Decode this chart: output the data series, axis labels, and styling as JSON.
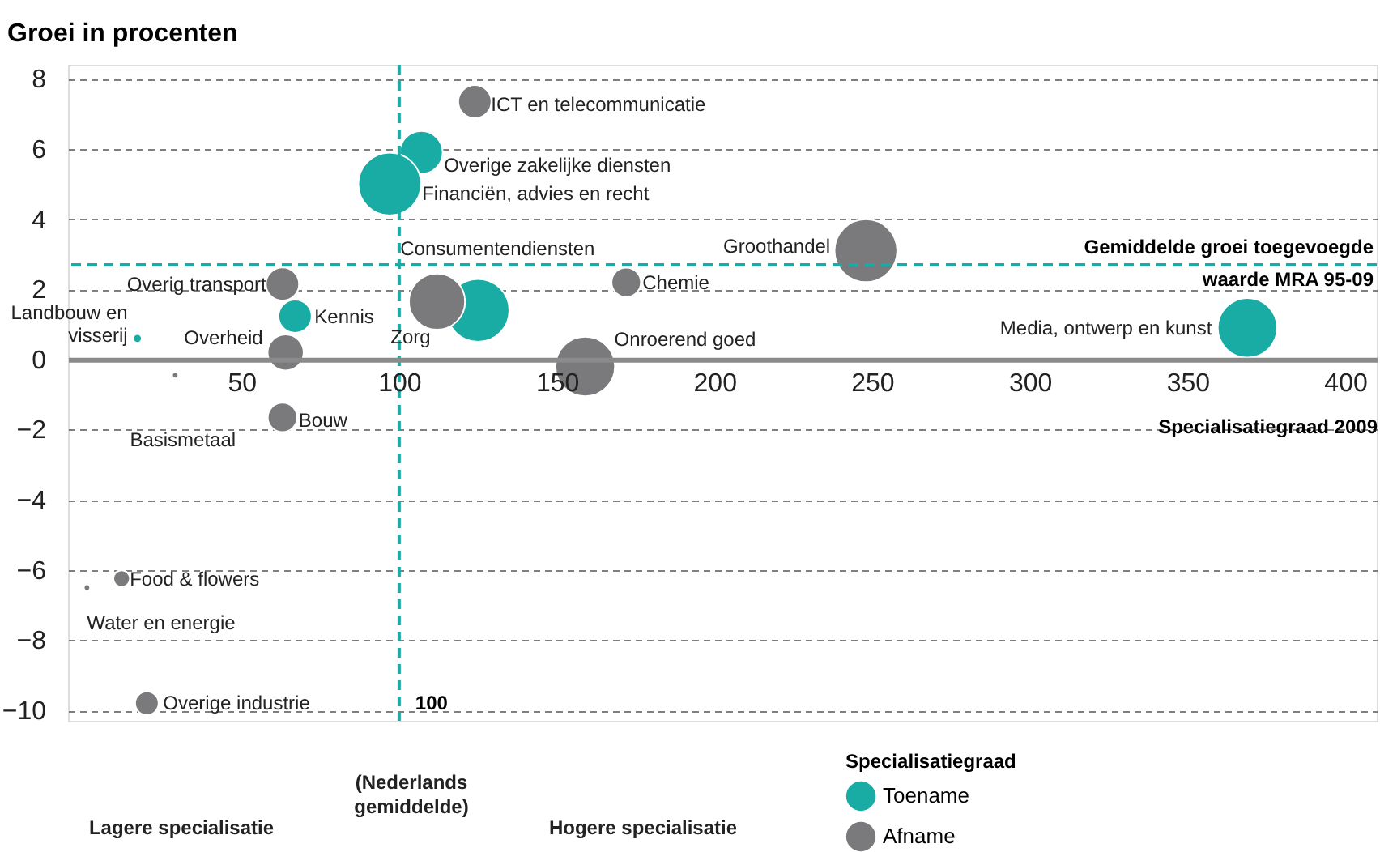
{
  "chart_data": {
    "type": "bubble",
    "ylabel": "Groei  in procenten",
    "xlabel": "Specialisatiegraad 2009",
    "legend_title": "Specialisatiegraad",
    "series": [
      {
        "name": "Toename",
        "color": "#19aca4",
        "x": [
          107,
          97,
          67,
          125,
          369,
          17
        ],
        "values": [
          5.9,
          5.0,
          1.23,
          1.4,
          0.9,
          0.6
        ],
        "sizes": [
          0.47,
          1,
          0.28,
          1,
          0.9,
          0.02
        ]
      },
      {
        "name": "Afname",
        "color": "#7a7a7c",
        "x": [
          124,
          248,
          63,
          112,
          172,
          64,
          159,
          29,
          63,
          12,
          1,
          20
        ],
        "values": [
          7.35,
          3.1,
          2.15,
          1.65,
          2.2,
          0.2,
          -0.2,
          -0.45,
          -1.65,
          -6.25,
          -6.5,
          -9.8
        ],
        "sizes": [
          0.28,
          1,
          0.28,
          0.8,
          0.22,
          0.33,
          0.9,
          0.01,
          0.22,
          0.07,
          0.01,
          0.14
        ]
      }
    ],
    "annotations": [
      {
        "text": "ICT en telecommunicatie",
        "x": 124,
        "y": 7.35
      },
      {
        "text": "Overige zakelijke diensten",
        "x": 107,
        "y": 5.9
      },
      {
        "text": "Financiën, advies en recht",
        "x": 97,
        "y": 5.0
      },
      {
        "text": "Groothandel",
        "x": 248,
        "y": 3.1
      },
      {
        "text": "Overig transport",
        "x": 63,
        "y": 2.15
      },
      {
        "text": "Kennis",
        "x": 67,
        "y": 1.23
      },
      {
        "text": "Consumentendiensten",
        "x": 125,
        "y": 1.4
      },
      {
        "text": "Zorg",
        "x": 112,
        "y": 1.65
      },
      {
        "text": "Chemie",
        "x": 172,
        "y": 2.2
      },
      {
        "text": "Media, ontwerp en kunst",
        "x": 369,
        "y": 0.9
      },
      {
        "text": "Landbouw en visserij",
        "x": 17,
        "y": 0.6
      },
      {
        "text": "Overheid",
        "x": 64,
        "y": 0.2
      },
      {
        "text": "Onroerend goed",
        "x": 159,
        "y": -0.2
      },
      {
        "text": "Basismetaal",
        "x": 29,
        "y": -0.45
      },
      {
        "text": "Bouw",
        "x": 63,
        "y": -1.65
      },
      {
        "text": "Food & flowers",
        "x": 12,
        "y": -6.25
      },
      {
        "text": "Water en energie",
        "x": 1,
        "y": -6.5
      },
      {
        "text": "Overige industrie",
        "x": 20,
        "y": -9.8
      },
      "(Nederlands gemiddelde)",
      "Lagere specialisatie",
      "Hogere specialisatie"
    ],
    "ref_lines": [
      {
        "axis": "x",
        "value": 100,
        "label": "100",
        "color": "#19aca4",
        "line_style": "dashed"
      },
      {
        "axis": "y",
        "value": 2.7,
        "label": "Gemiddelde groei toegevoegde waarde MRA 95-09",
        "color": "#19aca4",
        "line_style": "dashed"
      }
    ],
    "xlim": [
      -5,
      410
    ],
    "ylim": [
      -10.3,
      8.4
    ],
    "xticks": [
      50,
      100,
      150,
      200,
      250,
      300,
      350,
      400
    ],
    "yticks": [
      -10,
      -8,
      -6,
      -4,
      -2,
      0,
      2,
      4,
      6,
      8
    ],
    "grid": "y",
    "legend": "bottom"
  }
}
